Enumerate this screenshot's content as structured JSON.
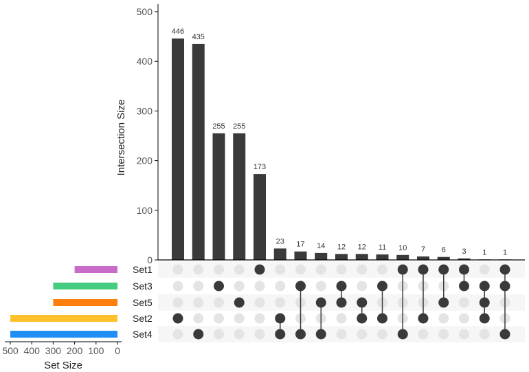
{
  "chart_data": {
    "type": "upset",
    "intersection_axis": {
      "label": "Intersection Size",
      "ylim": [
        0,
        500
      ],
      "ticks": [
        0,
        100,
        200,
        300,
        400,
        500
      ]
    },
    "set_size_axis": {
      "label": "Set Size",
      "xlim": [
        0,
        500
      ],
      "ticks": [
        500,
        400,
        300,
        200,
        100,
        0
      ]
    },
    "sets": [
      {
        "name": "Set1",
        "size": 200,
        "color": "#c96bc9"
      },
      {
        "name": "Set3",
        "size": 300,
        "color": "#44cd80"
      },
      {
        "name": "Set5",
        "size": 300,
        "color": "#ff7f0e"
      },
      {
        "name": "Set2",
        "size": 500,
        "color": "#ffc12b"
      },
      {
        "name": "Set4",
        "size": 500,
        "color": "#1f8ff6"
      }
    ],
    "intersections": [
      {
        "value": 446,
        "sets": [
          "Set2"
        ]
      },
      {
        "value": 435,
        "sets": [
          "Set4"
        ]
      },
      {
        "value": 255,
        "sets": [
          "Set3"
        ]
      },
      {
        "value": 255,
        "sets": [
          "Set5"
        ]
      },
      {
        "value": 173,
        "sets": [
          "Set1"
        ]
      },
      {
        "value": 23,
        "sets": [
          "Set2",
          "Set4"
        ]
      },
      {
        "value": 17,
        "sets": [
          "Set3",
          "Set4"
        ]
      },
      {
        "value": 14,
        "sets": [
          "Set5",
          "Set4"
        ]
      },
      {
        "value": 12,
        "sets": [
          "Set3",
          "Set5"
        ]
      },
      {
        "value": 12,
        "sets": [
          "Set5",
          "Set2"
        ]
      },
      {
        "value": 11,
        "sets": [
          "Set3",
          "Set2"
        ]
      },
      {
        "value": 10,
        "sets": [
          "Set1",
          "Set4"
        ]
      },
      {
        "value": 7,
        "sets": [
          "Set1",
          "Set2"
        ]
      },
      {
        "value": 6,
        "sets": [
          "Set1",
          "Set5"
        ]
      },
      {
        "value": 3,
        "sets": [
          "Set1",
          "Set3"
        ]
      },
      {
        "value": 1,
        "sets": [
          "Set3",
          "Set5",
          "Set2"
        ]
      },
      {
        "value": 1,
        "sets": [
          "Set1",
          "Set3",
          "Set4"
        ]
      }
    ],
    "colors": {
      "bar": "#3a3a3a",
      "dot_active": "#3a3a3a",
      "dot_inactive": "#e4e4e4",
      "stripe": "#f6f6f6"
    }
  }
}
